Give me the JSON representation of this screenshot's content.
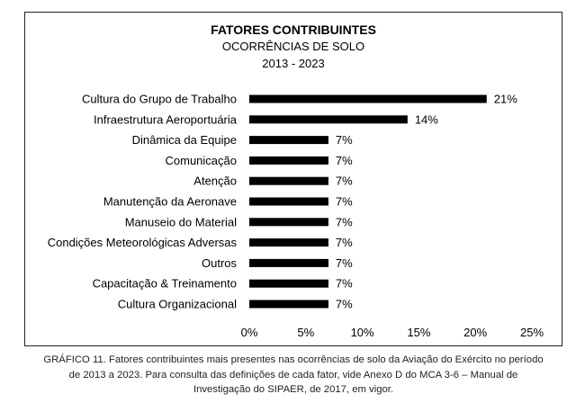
{
  "chart_data": {
    "type": "bar",
    "orientation": "horizontal",
    "title": "FATORES CONTRIBUINTES",
    "subtitle": "OCORRÊNCIAS DE SOLO",
    "period": "2013 - 2023",
    "categories": [
      "Cultura do Grupo de Trabalho",
      "Infraestrutura Aeroportuária",
      "Dinâmica da Equipe",
      "Comunicação",
      "Atenção",
      "Manutenção da Aeronave",
      "Manuseio do Material",
      "Condições Meteorológicas Adversas",
      "Outros",
      "Capacitação & Treinamento",
      "Cultura Organizacional"
    ],
    "values": [
      21,
      14,
      7,
      7,
      7,
      7,
      7,
      7,
      7,
      7,
      7
    ],
    "data_labels": [
      "21%",
      "14%",
      "7%",
      "7%",
      "7%",
      "7%",
      "7%",
      "7%",
      "7%",
      "7%",
      "7%"
    ],
    "xlim": [
      0,
      25
    ],
    "x_ticks": [
      0,
      5,
      10,
      15,
      20,
      25
    ],
    "x_tick_labels": [
      "0%",
      "5%",
      "10%",
      "15%",
      "20%",
      "25%"
    ],
    "grid": false,
    "legend": "none",
    "bar_color": "#000000"
  },
  "caption": {
    "line1": "GRÁFICO 11. Fatores contribuintes mais presentes nas ocorrências de solo da Aviação do Exército no período",
    "line2": "de 2013 a 2023. Para consulta das definições de cada fator, vide Anexo D do MCA 3-6 – Manual de",
    "line3": "Investigação do SIPAER, de 2017, em vigor."
  }
}
